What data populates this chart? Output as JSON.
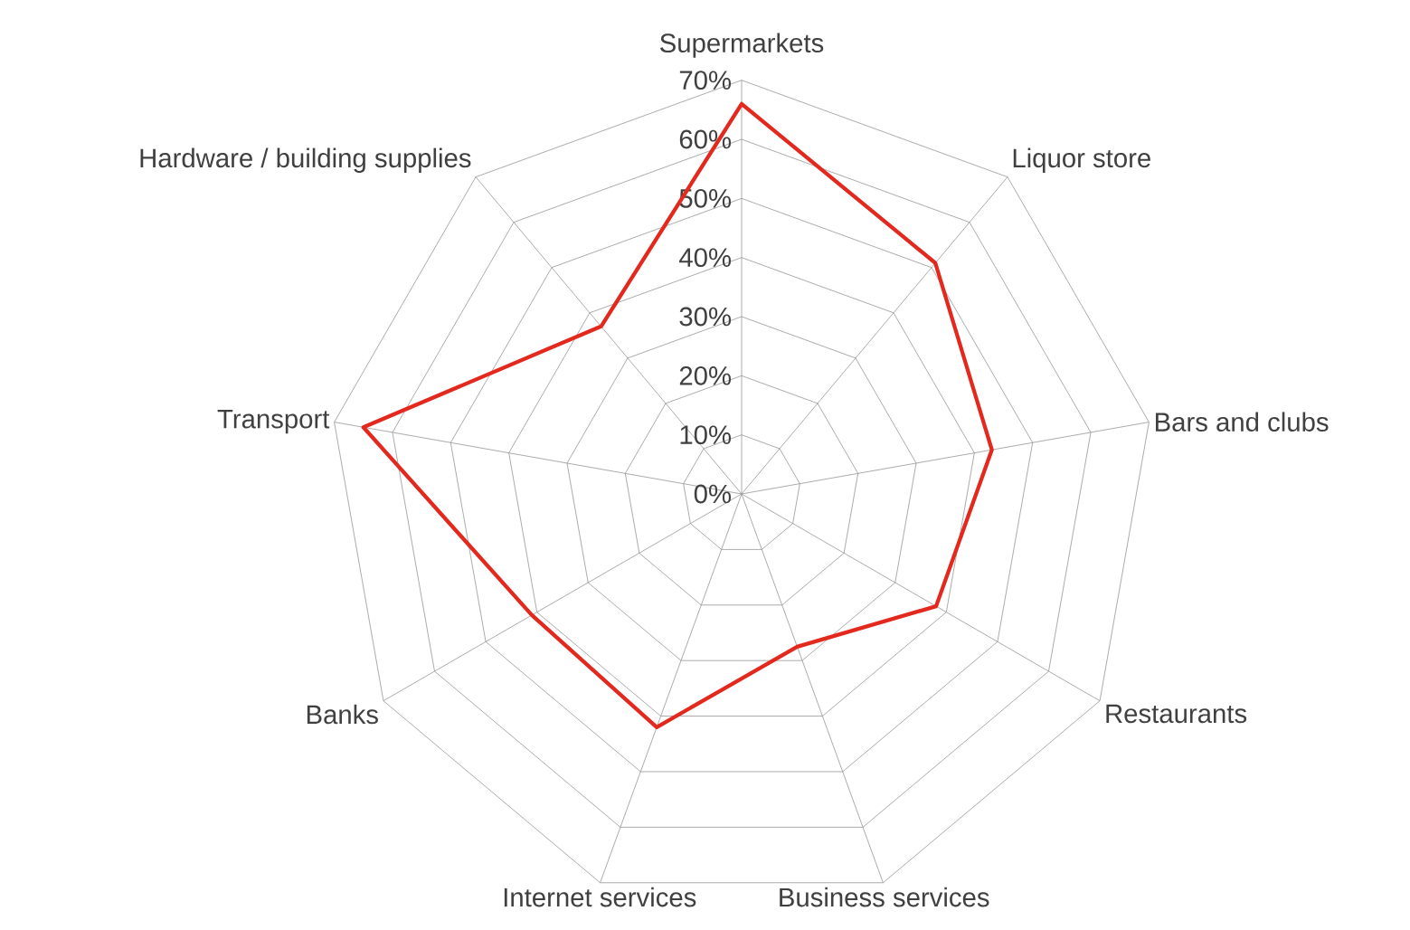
{
  "chart_data": {
    "type": "radar",
    "categories": [
      "Supermarkets",
      "Liquor store",
      "Bars and clubs",
      "Restaurants",
      "Business services",
      "Internet services",
      "Banks",
      "Transport",
      "Hardware / building supplies"
    ],
    "series": [
      {
        "color": "#e3281e",
        "values": [
          66,
          51,
          43,
          38,
          27.5,
          42,
          41,
          65,
          37
        ]
      }
    ],
    "ylim": [
      0,
      70
    ],
    "yticks": [
      {
        "value": 0,
        "label": "0%"
      },
      {
        "value": 10,
        "label": "10%"
      },
      {
        "value": 20,
        "label": "20%"
      },
      {
        "value": 30,
        "label": "30%"
      },
      {
        "value": 40,
        "label": "40%"
      },
      {
        "value": 50,
        "label": "50%"
      },
      {
        "value": 60,
        "label": "60%"
      },
      {
        "value": 70,
        "label": "70%"
      }
    ],
    "grid": true
  }
}
